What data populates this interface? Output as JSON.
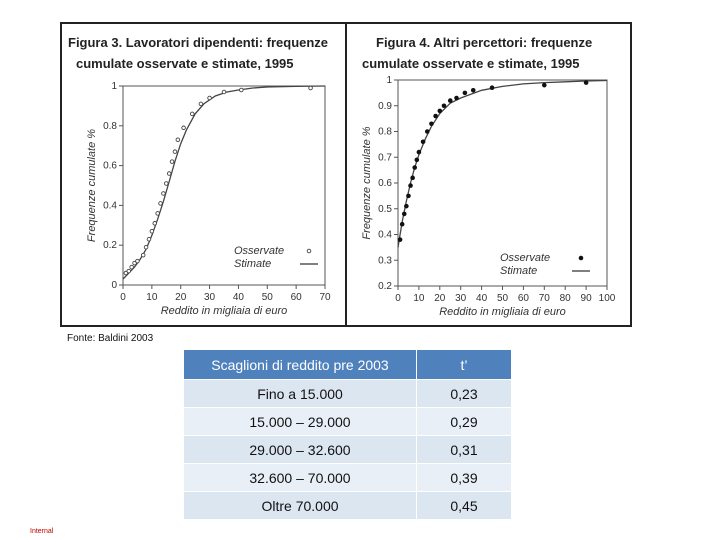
{
  "figures": {
    "fig3": {
      "title_line1": "Figura 3. Lavoratori dipendenti: frequenze",
      "title_line2": "cumulate osservate e stimate, 1995"
    },
    "fig4": {
      "title_line1": "Figura 4. Altri percettori: frequenze",
      "title_line2": "cumulate osservate e stimate, 1995"
    }
  },
  "chart_data": [
    {
      "type": "scatter",
      "title": "Figura 3. Lavoratori dipendenti: frequenze cumulate osservate e stimate, 1995",
      "xlabel": "Reddito in migliaia di euro",
      "ylabel": "Frequenze cumulate %",
      "xlim": [
        0,
        70
      ],
      "ylim": [
        0,
        1
      ],
      "xticks": [
        "0",
        "10",
        "20",
        "30",
        "40",
        "50",
        "60",
        "70"
      ],
      "yticks": [
        "0",
        "0.2",
        "0.4",
        "0.6",
        "0.8",
        "1"
      ],
      "legend": {
        "position": "bottom-right",
        "entries": [
          "Osservate",
          "Stimate"
        ]
      },
      "series": [
        {
          "name": "Osservate",
          "kind": "points",
          "x": [
            1,
            2,
            3,
            4,
            5,
            7,
            8,
            9,
            10,
            11,
            12,
            13,
            14,
            15,
            16,
            17,
            18,
            19,
            21,
            24,
            27,
            30,
            35,
            41,
            65
          ],
          "y": [
            0.06,
            0.07,
            0.09,
            0.11,
            0.12,
            0.15,
            0.19,
            0.23,
            0.27,
            0.31,
            0.36,
            0.41,
            0.46,
            0.51,
            0.56,
            0.62,
            0.67,
            0.73,
            0.79,
            0.86,
            0.91,
            0.94,
            0.97,
            0.98,
            0.99
          ]
        },
        {
          "name": "Stimate",
          "kind": "line",
          "x": [
            0,
            2,
            4,
            6,
            8,
            10,
            12,
            14,
            16,
            18,
            20,
            22,
            25,
            28,
            32,
            36,
            40,
            45,
            50,
            60,
            70
          ],
          "y": [
            0.03,
            0.06,
            0.09,
            0.13,
            0.18,
            0.25,
            0.33,
            0.42,
            0.52,
            0.62,
            0.71,
            0.78,
            0.86,
            0.91,
            0.95,
            0.97,
            0.98,
            0.99,
            0.995,
            0.998,
            1.0
          ]
        }
      ]
    },
    {
      "type": "scatter",
      "title": "Figura 4. Altri percettori: frequenze cumulate osservate e stimate, 1995",
      "xlabel": "Reddito in migliaia di euro",
      "ylabel": "Frequenze cumulate %",
      "xlim": [
        0,
        100
      ],
      "ylim": [
        0.2,
        1
      ],
      "xticks": [
        "0",
        "10",
        "20",
        "30",
        "40",
        "50",
        "60",
        "70",
        "80",
        "90",
        "100"
      ],
      "yticks": [
        "0.2",
        "0.3",
        "0.4",
        "0.5",
        "0.6",
        "0.7",
        "0.8",
        "0.9",
        "1"
      ],
      "legend": {
        "position": "bottom-right",
        "entries": [
          "Osservate",
          "Stimate"
        ]
      },
      "series": [
        {
          "name": "Osservate",
          "kind": "points",
          "x": [
            1,
            2,
            3,
            4,
            5,
            6,
            7,
            8,
            9,
            10,
            12,
            14,
            16,
            18,
            20,
            22,
            25,
            28,
            32,
            36,
            45,
            70,
            90
          ],
          "y": [
            0.38,
            0.44,
            0.48,
            0.51,
            0.55,
            0.59,
            0.62,
            0.66,
            0.69,
            0.72,
            0.76,
            0.8,
            0.83,
            0.86,
            0.88,
            0.9,
            0.92,
            0.93,
            0.95,
            0.96,
            0.97,
            0.98,
            0.99
          ]
        },
        {
          "name": "Stimate",
          "kind": "line",
          "x": [
            0,
            2,
            4,
            6,
            8,
            10,
            13,
            16,
            20,
            25,
            30,
            40,
            50,
            60,
            70,
            80,
            90,
            100
          ],
          "y": [
            0.35,
            0.45,
            0.53,
            0.6,
            0.66,
            0.71,
            0.77,
            0.82,
            0.87,
            0.91,
            0.93,
            0.96,
            0.975,
            0.985,
            0.99,
            0.993,
            0.996,
            0.998
          ]
        }
      ]
    }
  ],
  "source_note": "Fonte: Baldini 2003",
  "table": {
    "headers": [
      "Scaglioni di reddito pre 2003",
      "t’"
    ],
    "rows": [
      [
        "Fino a 15.000",
        "0,23"
      ],
      [
        "15.000 – 29.000",
        "0,29"
      ],
      [
        "29.000 – 32.600",
        "0,31"
      ],
      [
        "32.600 – 70.000",
        "0,39"
      ],
      [
        "Oltre 70.000",
        "0,45"
      ]
    ]
  },
  "footer_tag": "Internal"
}
